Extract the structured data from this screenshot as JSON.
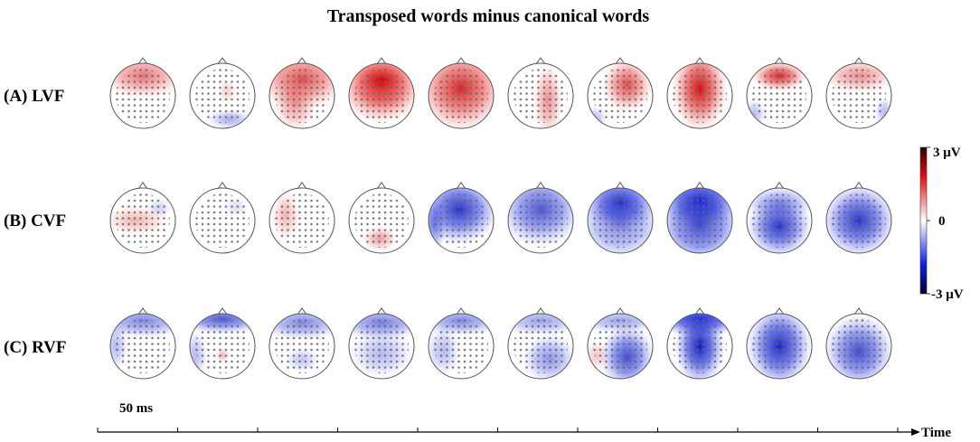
{
  "title": "Transposed words minus canonical words",
  "rows": [
    {
      "label": "(A) LVF"
    },
    {
      "label": "(B) CVF"
    },
    {
      "label": "(C) RVF"
    }
  ],
  "colorbar": {
    "max_label": "3 μV",
    "mid_label": "0",
    "min_label": "-3 μV"
  },
  "time_axis": {
    "start_label": "50 ms",
    "axis_label": "Time"
  }
}
